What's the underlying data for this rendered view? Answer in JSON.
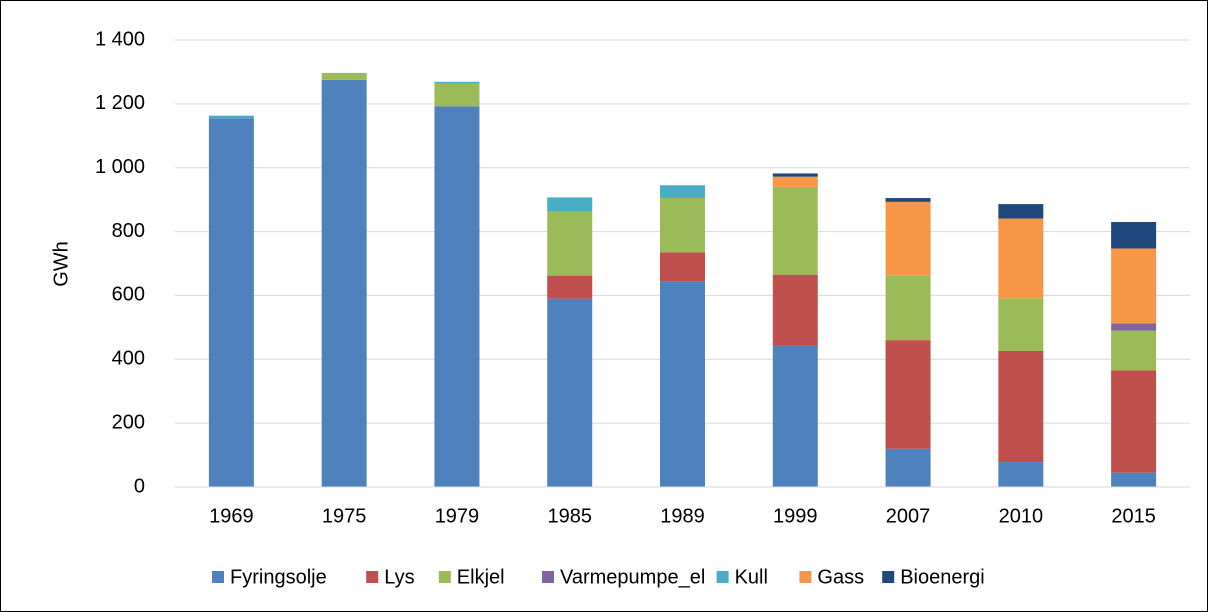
{
  "chart_data": {
    "type": "stacked_bar",
    "y_label": "GWh",
    "categories": [
      "1969",
      "1975",
      "1979",
      "1985",
      "1989",
      "1999",
      "2007",
      "2010",
      "2015"
    ],
    "series": [
      {
        "name": "Fyringsolje",
        "color": "#4f81bd",
        "values": [
          1155,
          1275,
          1192,
          590,
          645,
          443,
          120,
          78,
          45
        ]
      },
      {
        "name": "Lys",
        "color": "#c0504d",
        "values": [
          0,
          0,
          0,
          72,
          90,
          222,
          340,
          348,
          320
        ]
      },
      {
        "name": "Elkjel",
        "color": "#9bbb59",
        "values": [
          0,
          22,
          72,
          200,
          170,
          275,
          203,
          165,
          125
        ]
      },
      {
        "name": "Varmepumpe_el",
        "color": "#8064a2",
        "values": [
          0,
          0,
          0,
          0,
          0,
          0,
          0,
          0,
          22
        ]
      },
      {
        "name": "Kull",
        "color": "#4bacc6",
        "values": [
          8,
          0,
          5,
          45,
          40,
          0,
          0,
          0,
          0
        ]
      },
      {
        "name": "Gass",
        "color": "#f79646",
        "values": [
          0,
          0,
          0,
          0,
          0,
          32,
          230,
          250,
          235
        ]
      },
      {
        "name": "Bioenergi",
        "color": "#1f497d",
        "values": [
          0,
          0,
          0,
          0,
          0,
          10,
          12,
          45,
          83
        ]
      }
    ],
    "ylim": [
      0,
      1400
    ],
    "yticks": [
      0,
      200,
      400,
      600,
      800,
      {
        "value": 1000,
        "label": "1 000"
      },
      {
        "value": 1200,
        "label": "1 200"
      },
      {
        "value": 1400,
        "label": "1 400"
      }
    ],
    "grid": true,
    "legend": "bottom"
  }
}
